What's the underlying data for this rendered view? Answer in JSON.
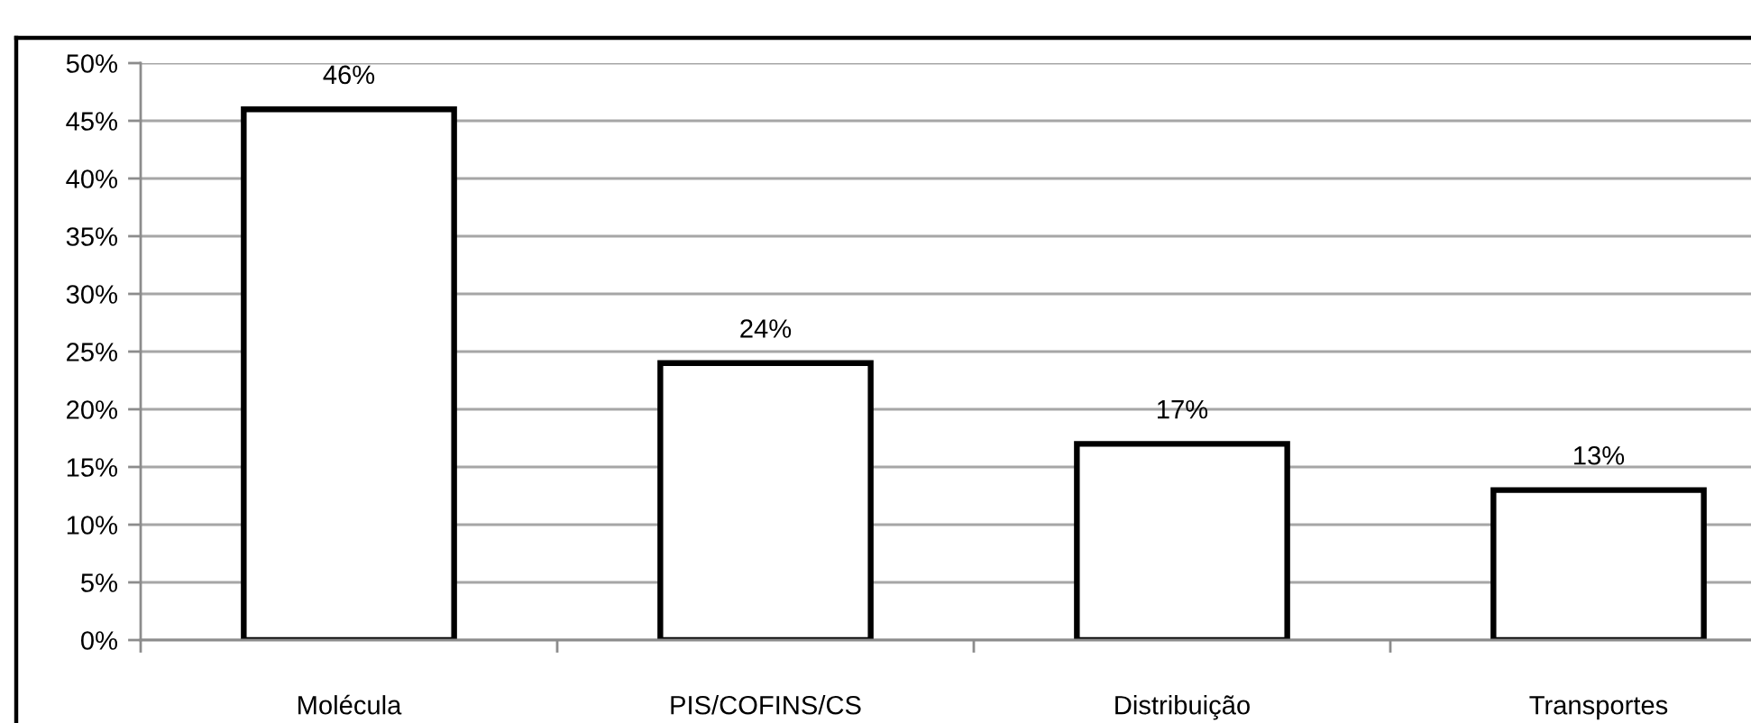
{
  "chart_data": {
    "type": "bar",
    "categories": [
      "Molécula",
      "PIS/COFINS/CS",
      "Distribuição",
      "Transportes"
    ],
    "values": [
      46,
      24,
      17,
      13
    ],
    "color": "#ffffff",
    "value_labels": [
      "46%",
      "24%",
      "17%",
      "13%"
    ],
    "ylim": [
      0,
      50
    ],
    "yticks": [
      {
        "value": 0,
        "label": "0%"
      },
      {
        "value": 5,
        "label": "5%"
      },
      {
        "value": 10,
        "label": "10%"
      },
      {
        "value": 15,
        "label": "15%"
      },
      {
        "value": 20,
        "label": "20%"
      },
      {
        "value": 25,
        "label": "25%"
      },
      {
        "value": 30,
        "label": "30%"
      },
      {
        "value": 35,
        "label": "35%"
      },
      {
        "value": 40,
        "label": "40%"
      },
      {
        "value": 45,
        "label": "45%"
      },
      {
        "value": 50,
        "label": "50%"
      }
    ],
    "grid": "y"
  }
}
